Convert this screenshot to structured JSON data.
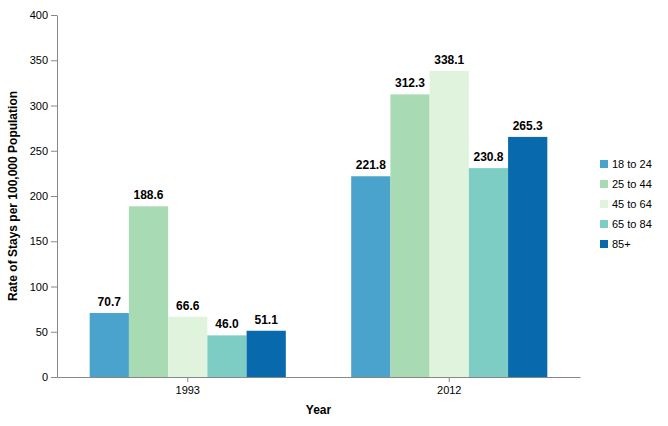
{
  "chart_data": {
    "type": "bar",
    "x_label": "Year",
    "y_label": "Rate of Stays per 100,000 Population",
    "categories": [
      "1993",
      "2012"
    ],
    "series": [
      {
        "name": "18 to 24",
        "color": "#4aa3cd",
        "values": [
          70.7,
          221.8
        ],
        "value_labels": [
          "70.7",
          "221.8"
        ]
      },
      {
        "name": "25 to 44",
        "color": "#a8dbb4",
        "values": [
          188.6,
          312.3
        ],
        "value_labels": [
          "188.6",
          "312.3"
        ]
      },
      {
        "name": "45 to 64",
        "color": "#e0f3dc",
        "values": [
          66.6,
          338.1
        ],
        "value_labels": [
          "66.6",
          "338.1"
        ]
      },
      {
        "name": "65 to 84",
        "color": "#7dcdc5",
        "values": [
          46.0,
          230.8
        ],
        "value_labels": [
          "46.0",
          "230.8"
        ]
      },
      {
        "name": "85+",
        "color": "#0869ad",
        "values": [
          51.1,
          265.3
        ],
        "value_labels": [
          "51.1",
          "265.3"
        ]
      }
    ],
    "ylim": [
      0,
      400
    ],
    "yticks": [
      0,
      50,
      100,
      150,
      200,
      250,
      300,
      350,
      400
    ],
    "grid": false,
    "legend": "right",
    "data_labels": true
  }
}
